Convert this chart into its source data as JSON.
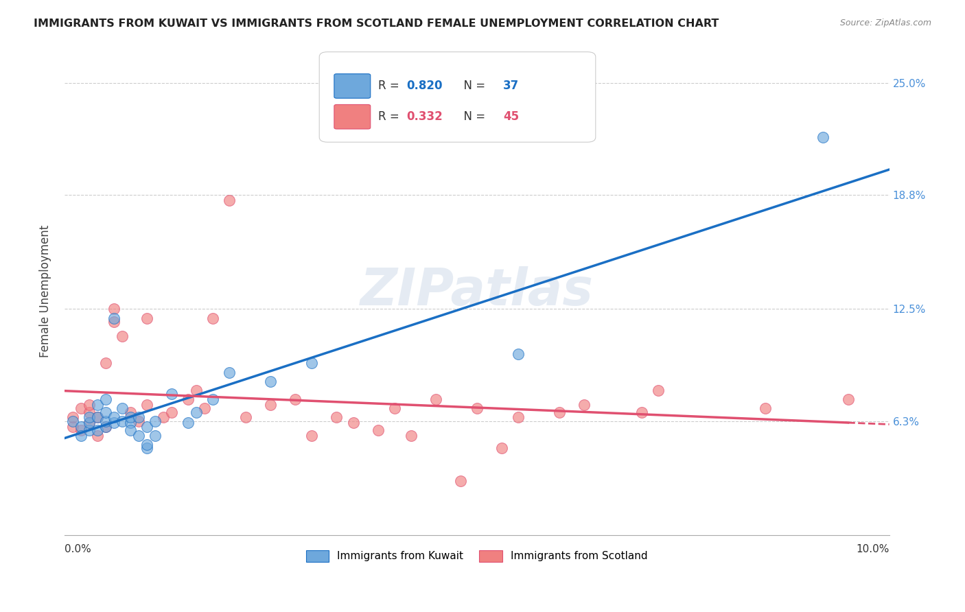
{
  "title": "IMMIGRANTS FROM KUWAIT VS IMMIGRANTS FROM SCOTLAND FEMALE UNEMPLOYMENT CORRELATION CHART",
  "source": "Source: ZipAtlas.com",
  "ylabel": "Female Unemployment",
  "yticks": [
    0.0,
    0.063,
    0.125,
    0.188,
    0.25
  ],
  "ytick_labels": [
    "",
    "6.3%",
    "12.5%",
    "18.8%",
    "25.0%"
  ],
  "xlim": [
    0.0,
    0.1
  ],
  "ylim": [
    0.0,
    0.27
  ],
  "legend_label_kuwait": "Immigrants from Kuwait",
  "legend_label_scotland": "Immigrants from Scotland",
  "color_kuwait": "#6ea8dc",
  "color_scotland": "#f08080",
  "color_kuwait_line": "#1a6fc4",
  "color_scotland_line": "#e05070",
  "watermark": "ZIPatlas",
  "kuwait_x": [
    0.001,
    0.002,
    0.002,
    0.003,
    0.003,
    0.003,
    0.004,
    0.004,
    0.004,
    0.005,
    0.005,
    0.005,
    0.005,
    0.006,
    0.006,
    0.006,
    0.007,
    0.007,
    0.008,
    0.008,
    0.008,
    0.009,
    0.009,
    0.01,
    0.01,
    0.01,
    0.011,
    0.011,
    0.013,
    0.015,
    0.016,
    0.018,
    0.02,
    0.025,
    0.03,
    0.055,
    0.092
  ],
  "kuwait_y": [
    0.063,
    0.06,
    0.055,
    0.058,
    0.062,
    0.065,
    0.058,
    0.065,
    0.072,
    0.06,
    0.063,
    0.068,
    0.075,
    0.062,
    0.065,
    0.12,
    0.063,
    0.07,
    0.062,
    0.058,
    0.065,
    0.055,
    0.065,
    0.048,
    0.05,
    0.06,
    0.055,
    0.063,
    0.078,
    0.062,
    0.068,
    0.075,
    0.09,
    0.085,
    0.095,
    0.1,
    0.22
  ],
  "scotland_x": [
    0.001,
    0.001,
    0.002,
    0.002,
    0.003,
    0.003,
    0.003,
    0.004,
    0.004,
    0.005,
    0.005,
    0.006,
    0.006,
    0.007,
    0.008,
    0.009,
    0.01,
    0.01,
    0.012,
    0.013,
    0.015,
    0.016,
    0.017,
    0.018,
    0.02,
    0.022,
    0.025,
    0.028,
    0.03,
    0.033,
    0.035,
    0.038,
    0.04,
    0.042,
    0.045,
    0.048,
    0.05,
    0.053,
    0.055,
    0.06,
    0.063,
    0.07,
    0.072,
    0.085,
    0.095
  ],
  "scotland_y": [
    0.06,
    0.065,
    0.058,
    0.07,
    0.062,
    0.068,
    0.072,
    0.055,
    0.065,
    0.06,
    0.095,
    0.118,
    0.125,
    0.11,
    0.068,
    0.063,
    0.072,
    0.12,
    0.065,
    0.068,
    0.075,
    0.08,
    0.07,
    0.12,
    0.185,
    0.065,
    0.072,
    0.075,
    0.055,
    0.065,
    0.062,
    0.058,
    0.07,
    0.055,
    0.075,
    0.03,
    0.07,
    0.048,
    0.065,
    0.068,
    0.072,
    0.068,
    0.08,
    0.07,
    0.075
  ]
}
